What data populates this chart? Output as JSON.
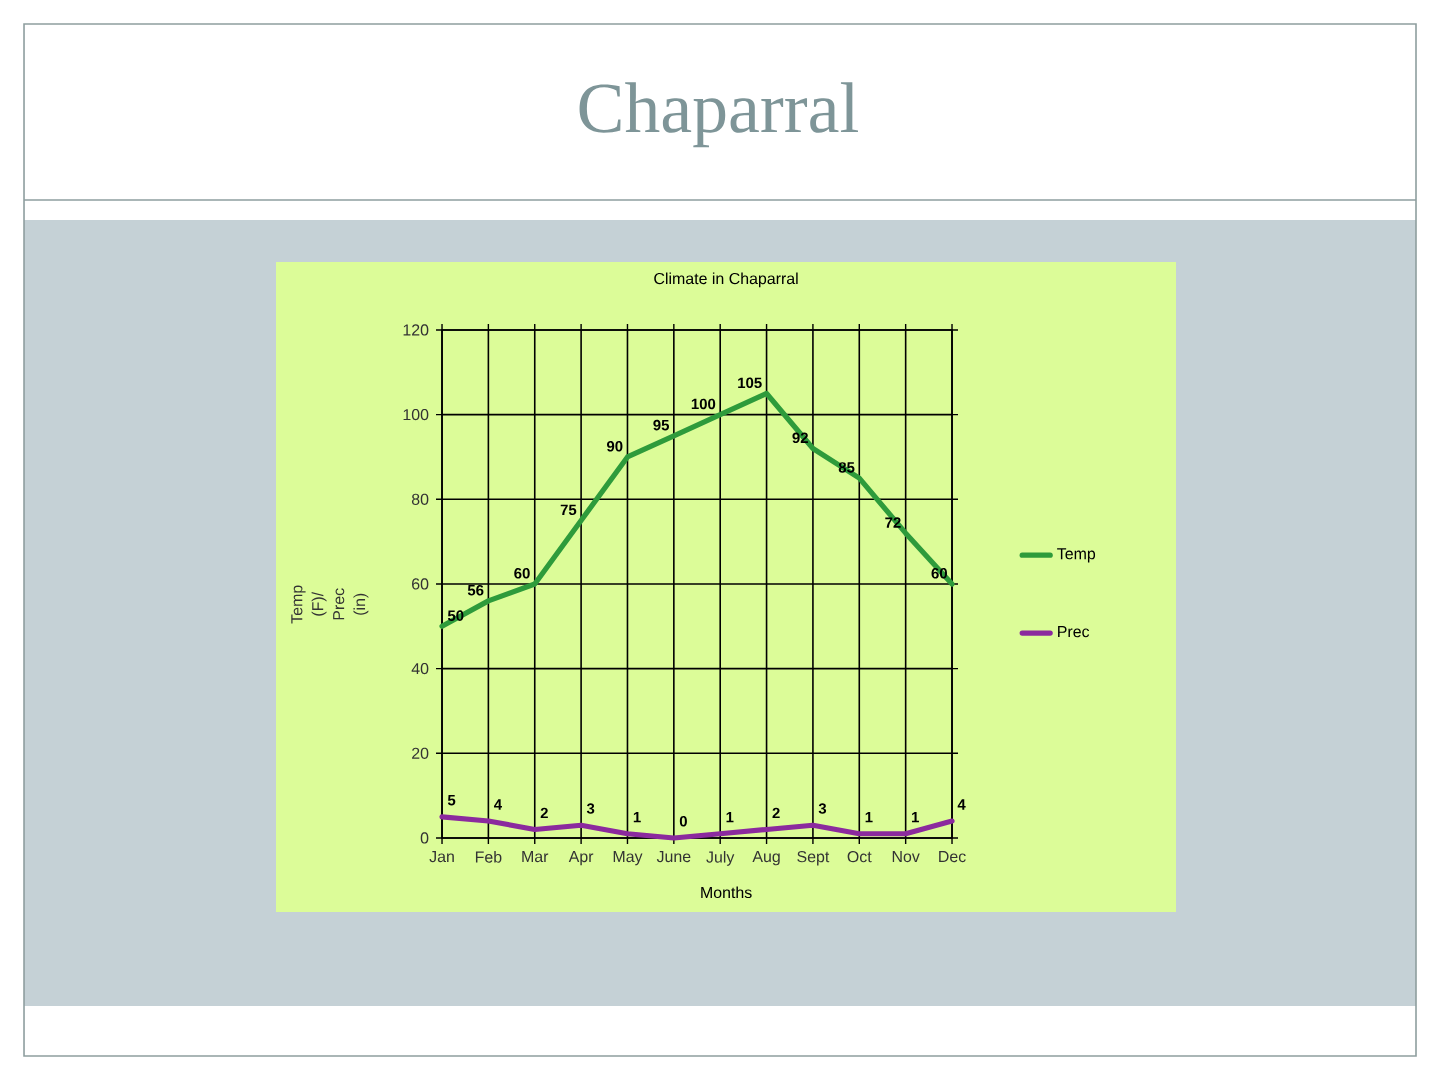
{
  "chart_data": {
    "type": "line",
    "title": "Chaparral",
    "subtitle": "Climate in Chaparral",
    "xlabel": "Months",
    "ylabel": "Temp (F)/ Prec (in)",
    "categories": [
      "Jan",
      "Feb",
      "Mar",
      "Apr",
      "May",
      "June",
      "July",
      "Aug",
      "Sept",
      "Oct",
      "Nov",
      "Dec"
    ],
    "series": [
      {
        "name": "Temp",
        "color": "#2e9b3b",
        "values": [
          50,
          56,
          60,
          75,
          90,
          95,
          100,
          105,
          92,
          85,
          72,
          60
        ]
      },
      {
        "name": "Prec",
        "color": "#8b2a9e",
        "values": [
          5,
          4,
          2,
          3,
          1,
          0,
          1,
          2,
          3,
          1,
          1,
          4
        ]
      }
    ],
    "ylim": [
      0,
      120
    ],
    "yticks": [
      0,
      20,
      40,
      60,
      80,
      100,
      120
    ],
    "grid": true,
    "legend": "right",
    "data_labels": true
  }
}
